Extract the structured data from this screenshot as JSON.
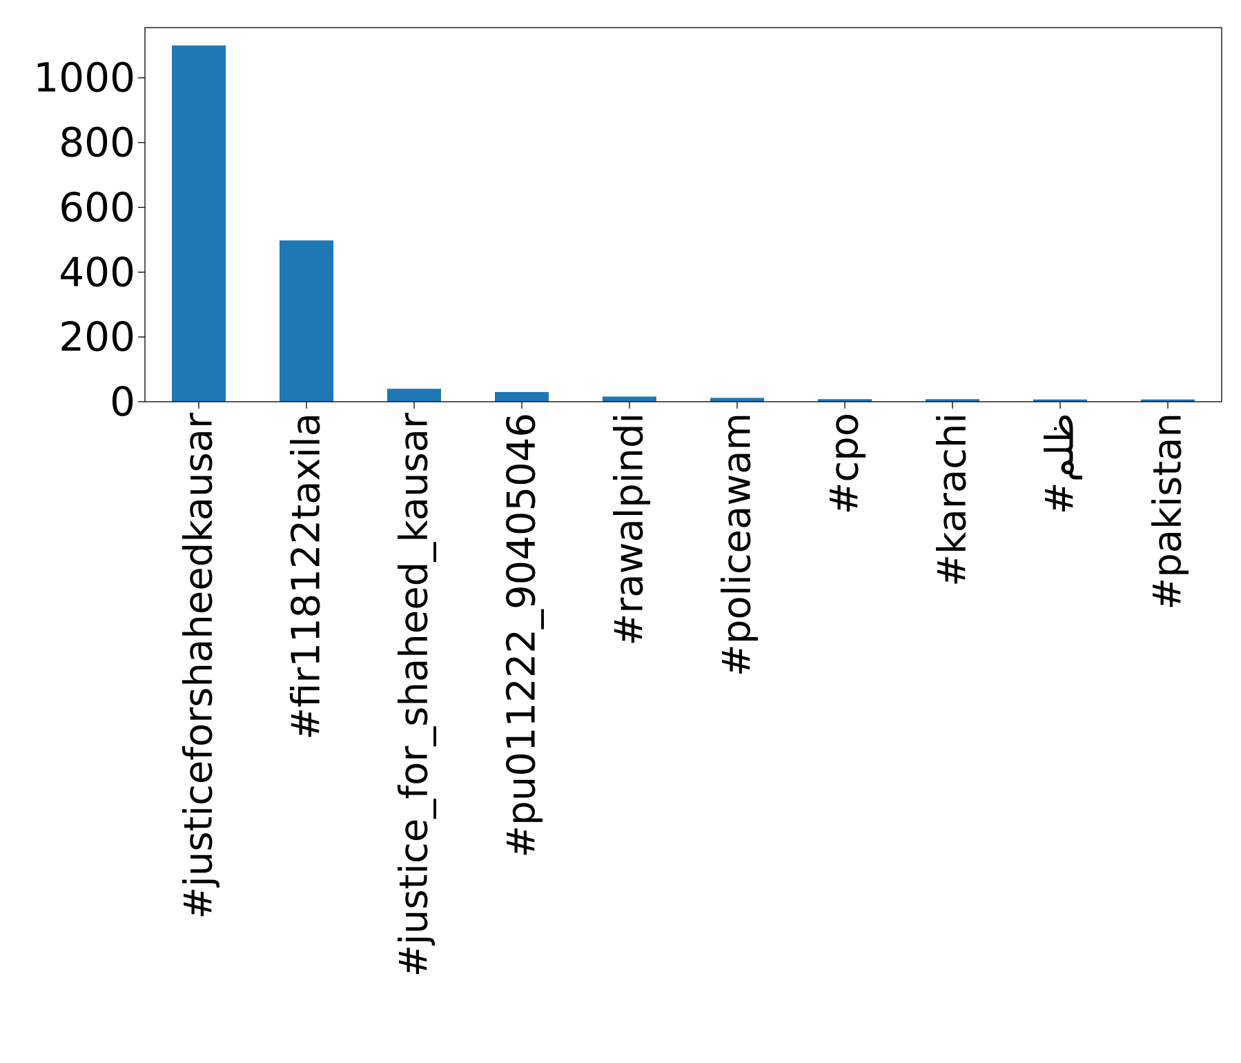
{
  "chart_data": {
    "type": "bar",
    "categories": [
      "#justiceforshaheedkausar",
      "#fir118122taxila",
      "#justice_for_shaheed_kausar",
      "#pu011222_90405046",
      "#rawalpindi",
      "#policeawam",
      "#cpo",
      "#karachi",
      "#ظلم",
      "#pakistan"
    ],
    "values": [
      1100,
      498,
      40,
      30,
      16,
      12,
      8,
      8,
      7,
      7
    ],
    "ylim": [
      0,
      1155
    ],
    "yticks": [
      0,
      200,
      400,
      600,
      800,
      1000
    ],
    "bar_color": "#1f77b4",
    "grid": false,
    "legend": "none"
  }
}
